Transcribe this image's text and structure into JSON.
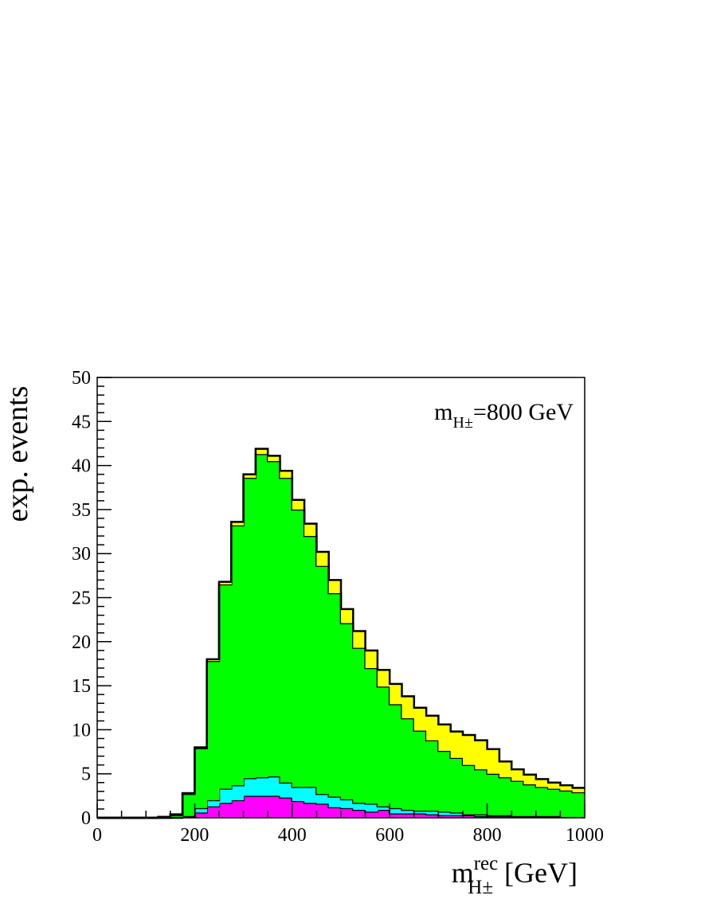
{
  "chart_data": {
    "type": "histogram",
    "stacked": true,
    "bins": [
      0,
      25,
      50,
      75,
      100,
      125,
      150,
      175,
      200,
      225,
      250,
      275,
      300,
      325,
      350,
      375,
      400,
      425,
      450,
      475,
      500,
      525,
      550,
      575,
      600,
      625,
      650,
      675,
      700,
      725,
      750,
      775,
      800,
      825,
      850,
      875,
      900,
      925,
      950,
      975,
      1000
    ],
    "series": [
      {
        "color": "#ff00ff",
        "values": [
          0,
          0,
          0,
          0,
          0,
          0,
          0,
          0.1,
          0.6,
          1.3,
          1.7,
          2.0,
          2.5,
          2.5,
          2.5,
          2.3,
          1.9,
          1.7,
          1.6,
          1.2,
          1.1,
          0.9,
          0.7,
          0.9,
          0.5,
          0.5,
          0.5,
          0.4,
          0.3,
          0.3,
          0.3,
          0.2,
          0.2,
          0.2,
          0.1,
          0.1,
          0.1,
          0.1,
          0.1,
          0.1
        ]
      },
      {
        "color": "#00ffff",
        "values": [
          0,
          0,
          0,
          0,
          0,
          0,
          0.1,
          0.1,
          0.5,
          0.7,
          1.6,
          1.7,
          2.0,
          2.1,
          2.2,
          1.7,
          1.6,
          1.8,
          1.1,
          1.2,
          1.0,
          0.8,
          0.9,
          0.4,
          0.6,
          0.4,
          0.3,
          0.4,
          0.4,
          0.3,
          0.1,
          0.2,
          0.1,
          0.1,
          0.1,
          0.1,
          0.1,
          0.1,
          0,
          0
        ]
      },
      {
        "color": "#00ff00",
        "values": [
          0,
          0,
          0,
          0,
          0,
          0.1,
          0.2,
          2.5,
          6.8,
          15.8,
          23.2,
          29.5,
          34.1,
          36.7,
          35.8,
          34.6,
          31.5,
          28.5,
          25.9,
          23.1,
          20.0,
          17.6,
          15.4,
          13.6,
          11.8,
          10.4,
          9.1,
          8.0,
          6.9,
          6.2,
          5.6,
          5.1,
          4.7,
          4.3,
          4.0,
          3.6,
          3.3,
          3.1,
          3.0,
          2.8
        ]
      },
      {
        "color": "#ffff00",
        "values": [
          0,
          0,
          0,
          0,
          0,
          0,
          0.1,
          0.1,
          0.1,
          0.2,
          0.3,
          0.4,
          0.4,
          0.6,
          0.6,
          0.8,
          1.1,
          1.4,
          1.6,
          1.5,
          1.6,
          1.9,
          2.0,
          1.9,
          2.3,
          2.5,
          2.6,
          2.8,
          3.0,
          3.0,
          3.4,
          3.3,
          2.8,
          1.8,
          1.3,
          1.1,
          0.9,
          0.7,
          0.6,
          0.5
        ]
      }
    ],
    "xlim": [
      0,
      1000
    ],
    "xticks": [
      0,
      200,
      400,
      600,
      800,
      1000
    ],
    "ylim": [
      0,
      50
    ],
    "yticks": [
      0,
      5,
      10,
      15,
      20,
      25,
      30,
      35,
      40,
      45,
      50
    ],
    "y_label": "exp. events",
    "x_label": {
      "main": "m",
      "sup": "rec",
      "sub": "H±",
      "unit": "[GeV]"
    },
    "annotation": {
      "main": "m",
      "sub": "H±",
      "rest": "=800 GeV"
    }
  }
}
